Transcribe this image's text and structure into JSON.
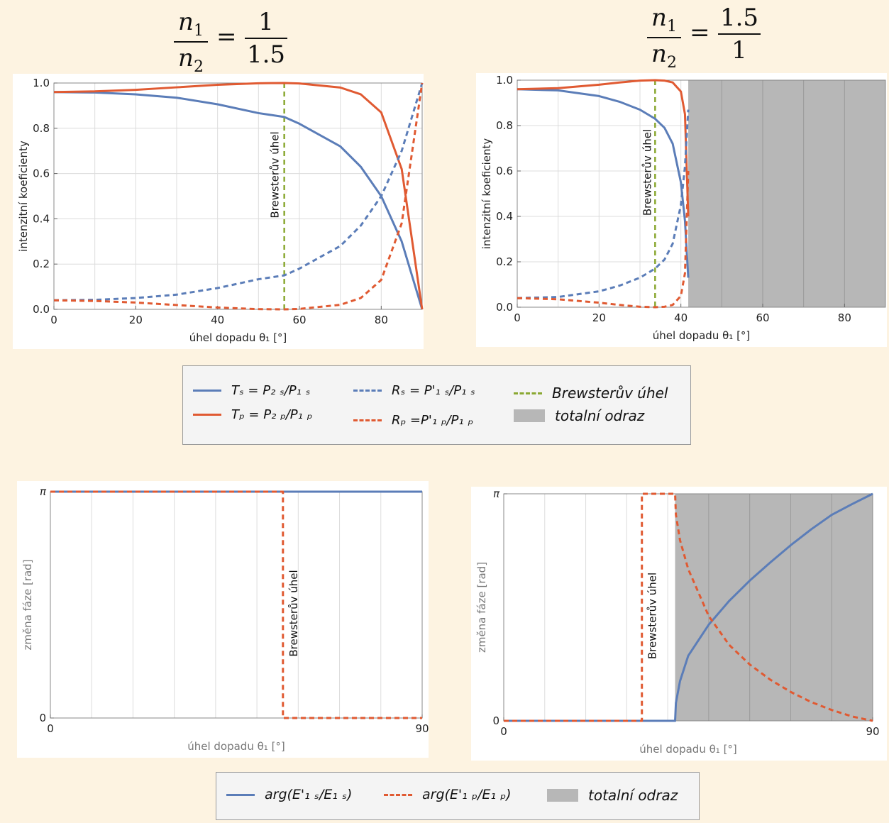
{
  "titles": {
    "left": {
      "n1": "n",
      "n1_sub": "1",
      "n2": "n",
      "n2_sub": "2",
      "eq": "=",
      "num": "1",
      "den": "1.5"
    },
    "right": {
      "n1": "n",
      "n1_sub": "1",
      "n2": "n",
      "n2_sub": "2",
      "eq": "=",
      "num": "1.5",
      "den": "1"
    }
  },
  "legend_top": {
    "Ts": "Tₛ = P₂ ₛ/P₁ ₛ",
    "Tp": "Tₚ = P₂ ₚ/P₁ ₚ",
    "Rs": "Rₛ = P'₁ ₛ/P₁ ₛ",
    "Rp": "Rₚ =P'₁ ₚ/P₁ ₚ",
    "brewster": "Brewsterův úhel",
    "total": "totalní odraz"
  },
  "legend_bottom": {
    "phase_s": "arg(E'₁ ₛ/E₁ ₛ)",
    "phase_p": "arg(E'₁ ₚ/E₁ ₚ)",
    "total": "totalní odraz"
  },
  "colors": {
    "s": "#5b7db8",
    "p": "#e05a32",
    "brewster": "#8aa832",
    "total": "#b7b7b7"
  },
  "chart_data": [
    {
      "type": "line",
      "ylabel": "intenzitní koeficienty",
      "xlabel": "úhel dopadu θ₁ [°]",
      "xlim": [
        0,
        90
      ],
      "ylim": [
        0,
        1
      ],
      "xticks": [
        "0",
        "20",
        "40",
        "60",
        "80"
      ],
      "yticks": [
        "0.0",
        "0.2",
        "0.4",
        "0.6",
        "0.8",
        "1.0"
      ],
      "annotation": "Brewsterův úhel",
      "brewster_angle": 56.3,
      "grid": true,
      "x": [
        0,
        10,
        20,
        30,
        40,
        50,
        56.3,
        60,
        70,
        75,
        80,
        85,
        90
      ],
      "series": [
        {
          "name": "Tₛ = P₂ ₛ/P₁ ₛ",
          "values": [
            0.96,
            0.958,
            0.95,
            0.935,
            0.906,
            0.867,
            0.85,
            0.82,
            0.72,
            0.63,
            0.5,
            0.3,
            0.0
          ]
        },
        {
          "name": "Tₚ = P₂ ₚ/P₁ ₚ",
          "values": [
            0.96,
            0.963,
            0.97,
            0.981,
            0.992,
            0.999,
            1.0,
            0.998,
            0.98,
            0.95,
            0.87,
            0.62,
            0.0
          ]
        },
        {
          "name": "Rₛ = P'₁ ₛ/P₁ ₛ",
          "values": [
            0.04,
            0.042,
            0.05,
            0.065,
            0.094,
            0.133,
            0.15,
            0.18,
            0.28,
            0.37,
            0.5,
            0.7,
            1.0
          ]
        },
        {
          "name": "Rₚ =P'₁ ₚ/P₁ ₚ",
          "values": [
            0.04,
            0.037,
            0.03,
            0.019,
            0.008,
            0.001,
            0.0,
            0.002,
            0.02,
            0.05,
            0.13,
            0.38,
            1.0
          ]
        }
      ]
    },
    {
      "type": "line",
      "ylabel": "intenzitní koeficienty",
      "xlabel": "úhel dopadu θ₁ [°]",
      "xlim": [
        0,
        90
      ],
      "ylim": [
        0,
        1
      ],
      "xticks": [
        "0",
        "20",
        "40",
        "60",
        "80"
      ],
      "yticks": [
        "0.0",
        "0.2",
        "0.4",
        "0.6",
        "0.8",
        "1.0"
      ],
      "annotation": "Brewsterův úhel",
      "brewster_angle": 33.7,
      "critical_angle": 41.8,
      "grid": true,
      "x": [
        0,
        10,
        20,
        25,
        30,
        33.7,
        36,
        38,
        40,
        41,
        41.8
      ],
      "series": [
        {
          "name": "Tₛ = P₂ ₛ/P₁ ₛ",
          "values": [
            0.96,
            0.955,
            0.93,
            0.905,
            0.87,
            0.83,
            0.79,
            0.72,
            0.55,
            0.38,
            0.13
          ]
        },
        {
          "name": "Tₚ = P₂ ₚ/P₁ ₚ",
          "values": [
            0.96,
            0.965,
            0.98,
            0.99,
            0.998,
            1.0,
            0.998,
            0.99,
            0.95,
            0.85,
            0.4
          ]
        },
        {
          "name": "Rₛ = P'₁ ₛ/P₁ ₛ",
          "values": [
            0.04,
            0.045,
            0.07,
            0.095,
            0.13,
            0.17,
            0.21,
            0.28,
            0.45,
            0.62,
            0.87
          ]
        },
        {
          "name": "Rₚ =P'₁ ₚ/P₁ ₚ",
          "values": [
            0.04,
            0.035,
            0.02,
            0.01,
            0.002,
            0.0,
            0.002,
            0.01,
            0.05,
            0.15,
            0.6
          ]
        }
      ]
    },
    {
      "type": "line",
      "ylabel": "změna fáze [rad]",
      "xlabel": "úhel dopadu θ₁ [°]",
      "xlim": [
        0,
        90
      ],
      "ylim": [
        0,
        3.1416
      ],
      "xticks": [
        "0",
        "90"
      ],
      "yticks": [
        "0",
        "π"
      ],
      "annotation": "Brewsterův úhel",
      "brewster_angle": 56.3,
      "grid": true,
      "series": [
        {
          "name": "arg(E'₁ ₛ/E₁ ₛ)",
          "x": [
            0,
            90
          ],
          "values": [
            3.1416,
            3.1416
          ]
        },
        {
          "name": "arg(E'₁ ₚ/E₁ ₚ)",
          "x": [
            0,
            56.3,
            56.3,
            90
          ],
          "values": [
            3.1416,
            3.1416,
            0,
            0
          ]
        }
      ]
    },
    {
      "type": "line",
      "ylabel": "změna fáze [rad]",
      "xlabel": "úhel dopadu θ₁ [°]",
      "xlim": [
        0,
        90
      ],
      "ylim": [
        0,
        3.1416
      ],
      "xticks": [
        "0",
        "90"
      ],
      "yticks": [
        "0",
        "π"
      ],
      "annotation": "Brewsterův úhel",
      "brewster_angle": 33.7,
      "critical_angle": 41.8,
      "grid": true,
      "series": [
        {
          "name": "arg(E'₁ ₛ/E₁ ₛ)",
          "x": [
            0,
            41.8,
            42,
            43,
            45,
            50,
            55,
            60,
            65,
            70,
            75,
            80,
            85,
            90
          ],
          "values": [
            0,
            0,
            0.25,
            0.55,
            0.9,
            1.33,
            1.66,
            1.94,
            2.19,
            2.43,
            2.65,
            2.85,
            3.0,
            3.1416
          ]
        },
        {
          "name": "arg(E'₁ ₚ/E₁ ₚ)",
          "x": [
            0,
            33.7,
            33.7,
            41.8,
            42,
            43,
            45,
            50,
            55,
            60,
            65,
            70,
            75,
            80,
            85,
            90
          ],
          "values": [
            0,
            0,
            3.1416,
            3.1416,
            2.85,
            2.5,
            2.1,
            1.45,
            1.05,
            0.78,
            0.57,
            0.4,
            0.26,
            0.15,
            0.06,
            0.0
          ]
        }
      ]
    }
  ]
}
